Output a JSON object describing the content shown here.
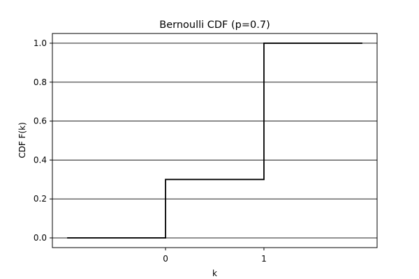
{
  "chart_data": {
    "type": "line",
    "step": "post",
    "title": "Bernoulli CDF (p=0.7)",
    "xlabel": "k",
    "ylabel": "CDF F(k)",
    "x": [
      -1,
      0,
      1,
      2
    ],
    "y": [
      0.0,
      0.3,
      1.0,
      1.0
    ],
    "xlim": [
      -1.15,
      2.15
    ],
    "ylim": [
      -0.05,
      1.05
    ],
    "xticks": [
      0,
      1
    ],
    "yticks": [
      0.0,
      0.2,
      0.4,
      0.6,
      0.8,
      1.0
    ],
    "ytick_labels": [
      "0.0",
      "0.2",
      "0.4",
      "0.6",
      "0.8",
      "1.0"
    ],
    "grid": "y",
    "line_color": "#000000",
    "grid_color": "#000000"
  }
}
